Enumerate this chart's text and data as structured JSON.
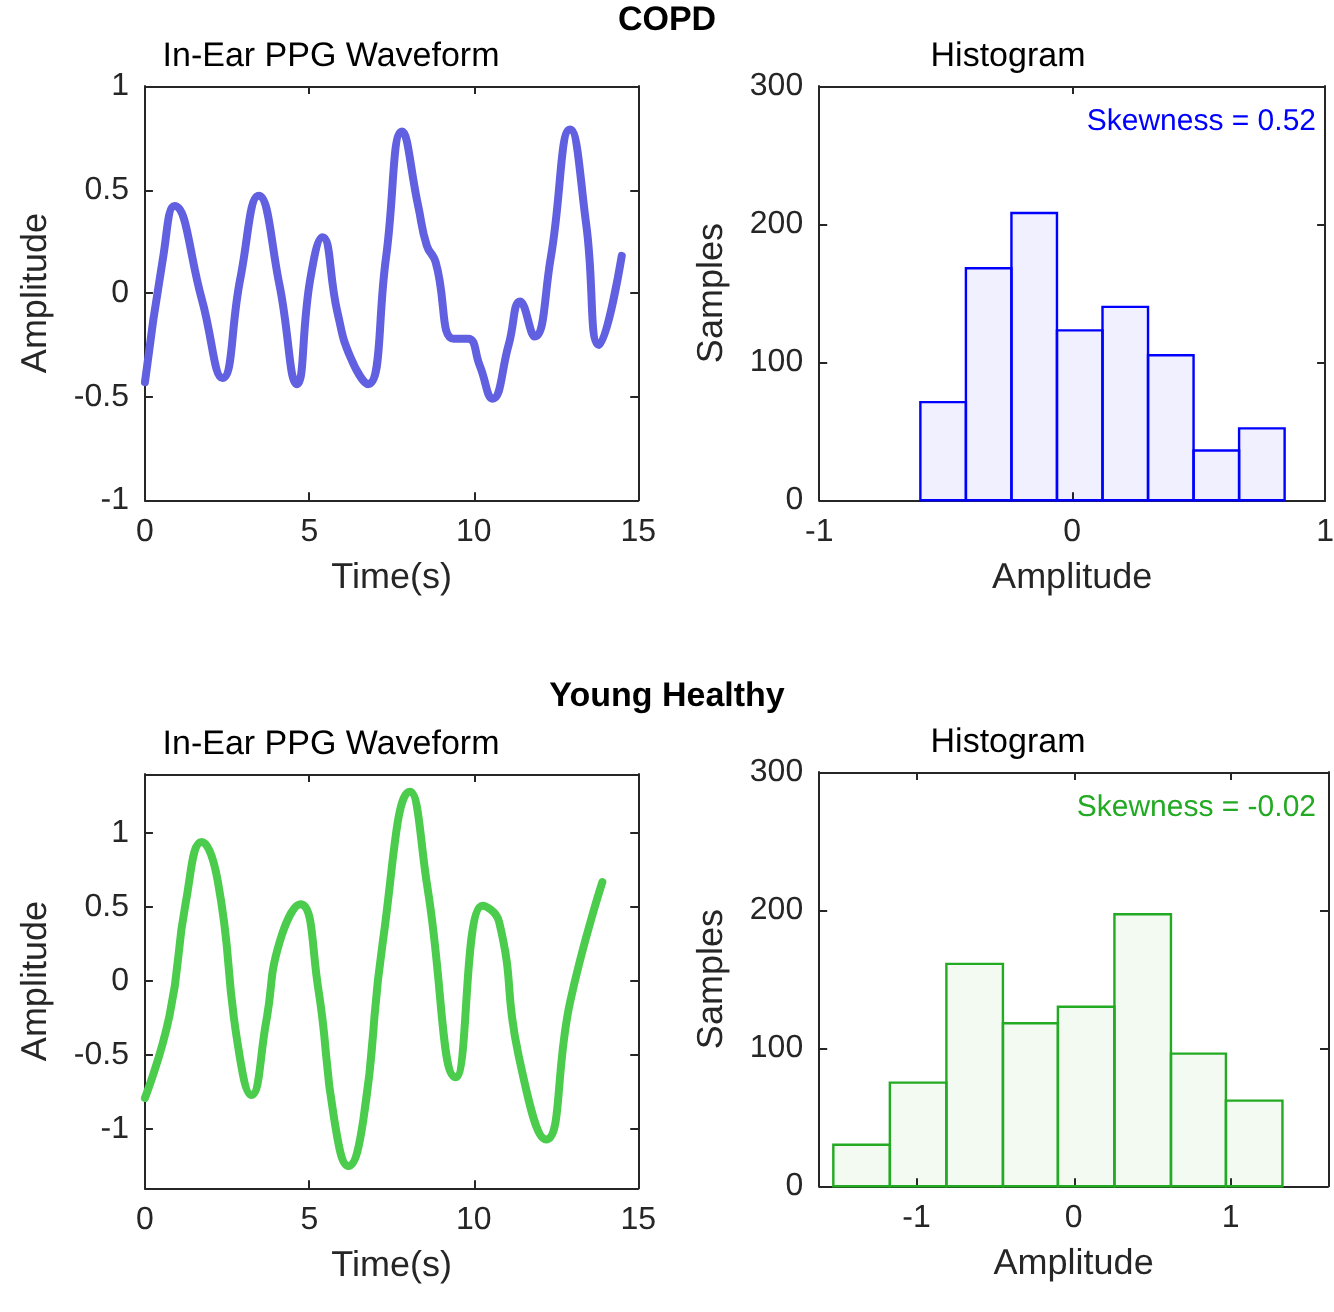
{
  "chart_data": [
    {
      "type": "line",
      "subtitle": "COPD",
      "title": "In-Ear PPG Waveform",
      "xlabel": "Time(s)",
      "ylabel": "Amplitude",
      "xlim": [
        0,
        15
      ],
      "xticks": [
        0,
        5,
        10,
        15
      ],
      "ylim": [
        -1,
        1
      ],
      "yticks": [
        -1,
        -0.5,
        0,
        0.5,
        1
      ],
      "grid": false,
      "marker": "none",
      "line_style": "solid",
      "series": [
        {
          "color": "#6060e0",
          "x": [
            0,
            0.55,
            0.9,
            1.73,
            2.36,
            2.9,
            3.46,
            4.09,
            4.62,
            5.03,
            5.4,
            5.85,
            6.25,
            6.78,
            7.33,
            7.82,
            8.31,
            8.57,
            8.84,
            9.39,
            9.82,
            10.18,
            10.57,
            11.06,
            11.41,
            11.85,
            12.34,
            12.93,
            13.42,
            13.81,
            14.5
          ],
          "values": [
            -0.43,
            0.17,
            0.42,
            -0.03,
            -0.41,
            0.07,
            0.47,
            0.04,
            -0.44,
            0.07,
            0.27,
            -0.09,
            -0.31,
            -0.44,
            0.17,
            0.78,
            0.42,
            0.23,
            0.15,
            -0.22,
            -0.22,
            -0.35,
            -0.51,
            -0.25,
            -0.04,
            -0.21,
            0.17,
            0.79,
            0.33,
            -0.25,
            0.18
          ]
        }
      ]
    },
    {
      "type": "histogram",
      "title": "Histogram",
      "xlabel": "Amplitude",
      "ylabel": "Samples",
      "xlim": [
        -1,
        1
      ],
      "xticks": [
        -1,
        0,
        1
      ],
      "ylim": [
        0,
        300
      ],
      "yticks": [
        0,
        100,
        200,
        300
      ],
      "grid": false,
      "annotations": [
        "Skewness = 0.52"
      ],
      "color": "#0000ff",
      "bins": [
        -0.6,
        -0.42,
        -0.24,
        -0.06,
        0.12,
        0.3,
        0.48,
        0.66,
        0.84
      ],
      "values": [
        71,
        168,
        208,
        123,
        140,
        105,
        36,
        52
      ]
    },
    {
      "type": "line",
      "subtitle": "Young Healthy",
      "title": "In-Ear PPG Waveform",
      "xlabel": "Time(s)",
      "ylabel": "Amplitude",
      "xlim": [
        0,
        15
      ],
      "xticks": [
        0,
        5,
        10,
        15
      ],
      "ylim": [
        -1.4,
        1.4
      ],
      "yticks": [
        -1,
        -0.5,
        0,
        0.5,
        1
      ],
      "grid": false,
      "marker": "none",
      "line_style": "solid",
      "series": [
        {
          "color": "#4ccc4c",
          "x": [
            0,
            0.75,
            1.24,
            1.73,
            2.22,
            2.81,
            3.24,
            3.69,
            4.09,
            4.73,
            5.27,
            5.76,
            6.19,
            6.64,
            7.23,
            8.06,
            8.6,
            9.45,
            10.27,
            10.77,
            11.36,
            12.2,
            12.93,
            13.91
          ],
          "values": [
            -0.79,
            -0.23,
            0.53,
            0.94,
            0.67,
            -0.41,
            -0.77,
            -0.27,
            0.26,
            0.52,
            -0.05,
            -0.94,
            -1.25,
            -0.94,
            0.26,
            1.28,
            0.62,
            -0.65,
            0.51,
            0.4,
            -0.5,
            -1.07,
            -0.14,
            0.67
          ]
        }
      ]
    },
    {
      "type": "histogram",
      "title": "Histogram",
      "xlabel": "Amplitude",
      "ylabel": "Samples",
      "xlim": [
        -1.62,
        1.62
      ],
      "xticks": [
        -1,
        0,
        1
      ],
      "ylim": [
        0,
        300
      ],
      "yticks": [
        0,
        100,
        200,
        300
      ],
      "grid": false,
      "annotations": [
        "Skewness = -0.02"
      ],
      "color": "#22aa22",
      "bins": [
        -1.53,
        -1.17,
        -0.81,
        -0.45,
        -0.1,
        0.26,
        0.62,
        0.97,
        1.33
      ],
      "values": [
        30,
        75,
        161,
        118,
        130,
        197,
        96,
        62
      ]
    }
  ]
}
